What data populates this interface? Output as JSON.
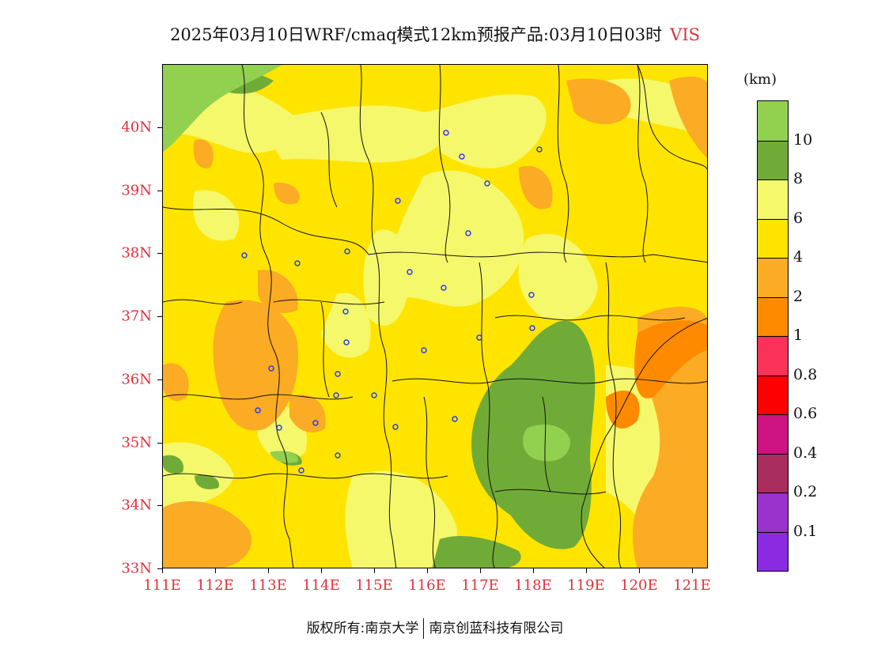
{
  "title": {
    "text": "2025年03月10日WRF/cmaq模式12km预报产品:03月10日03时",
    "variable": "VIS"
  },
  "map": {
    "lat_labels": [
      "33N",
      "34N",
      "35N",
      "36N",
      "37N",
      "38N",
      "39N",
      "40N"
    ],
    "lon_labels": [
      "111E",
      "112E",
      "113E",
      "114E",
      "115E",
      "116E",
      "117E",
      "118E",
      "119E",
      "120E",
      "121E"
    ],
    "lat_range": [
      33,
      41
    ],
    "lon_range": [
      111,
      121.3
    ]
  },
  "colorbar": {
    "unit": "(km)",
    "levels": [
      "10",
      "8",
      "6",
      "4",
      "2",
      "1",
      "0.8",
      "0.6",
      "0.4",
      "0.2",
      "0.1"
    ],
    "colors": [
      "#92d050",
      "#70ab37",
      "#f4f86a",
      "#ffe400",
      "#fbab24",
      "#fe8a00",
      "#fa3159",
      "#ff0000",
      "#cc1380",
      "#a82d5c",
      "#9933cc",
      "#8a2be2"
    ]
  },
  "footer": {
    "left": "版权所有:南京大学",
    "right": "南京创蓝科技有限公司"
  }
}
